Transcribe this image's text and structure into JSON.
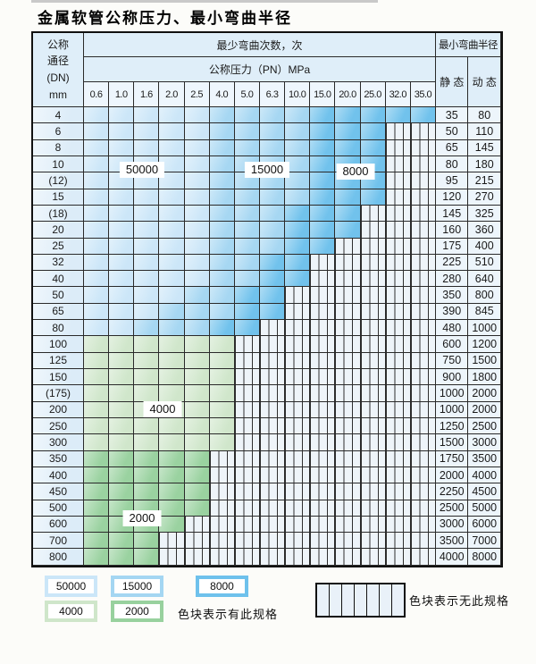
{
  "title": "金属软管公称压力、最小弯曲半径",
  "table": {
    "dn_header_lines": [
      "公称",
      "通径",
      "(DN)",
      "mm"
    ],
    "bend_cycles_header": "最少弯曲次数，次",
    "pressure_header": "公称压力（PN）MPa",
    "radius_header": "最小弯曲半径",
    "static_header": "静 态",
    "dynamic_header": "动 态",
    "pressure_columns": [
      "0.6",
      "1.0",
      "1.6",
      "2.0",
      "2.5",
      "4.0",
      "5.0",
      "6.3",
      "10.0",
      "15.0",
      "20.0",
      "25.0",
      "32.0",
      "35.0"
    ],
    "rows": [
      {
        "dn": "4",
        "bands": [
          [
            "50000",
            0,
            4
          ],
          [
            "15000",
            5,
            8
          ],
          [
            "8000",
            9,
            13
          ]
        ],
        "static": "35",
        "dynamic": "80"
      },
      {
        "dn": "6",
        "bands": [
          [
            "50000",
            0,
            4
          ],
          [
            "15000",
            5,
            8
          ],
          [
            "8000",
            9,
            11
          ]
        ],
        "static": "50",
        "dynamic": "110"
      },
      {
        "dn": "8",
        "bands": [
          [
            "50000",
            0,
            4
          ],
          [
            "15000",
            5,
            8
          ],
          [
            "8000",
            9,
            11
          ]
        ],
        "static": "65",
        "dynamic": "145"
      },
      {
        "dn": "10",
        "bands": [
          [
            "50000",
            0,
            4
          ],
          [
            "15000",
            5,
            8
          ],
          [
            "8000",
            9,
            11
          ]
        ],
        "static": "80",
        "dynamic": "180"
      },
      {
        "dn": "(12)",
        "bands": [
          [
            "50000",
            0,
            4
          ],
          [
            "15000",
            5,
            8
          ],
          [
            "8000",
            9,
            11
          ]
        ],
        "static": "95",
        "dynamic": "215"
      },
      {
        "dn": "15",
        "bands": [
          [
            "50000",
            0,
            4
          ],
          [
            "15000",
            5,
            8
          ],
          [
            "8000",
            9,
            11
          ]
        ],
        "static": "120",
        "dynamic": "270"
      },
      {
        "dn": "(18)",
        "bands": [
          [
            "50000",
            0,
            4
          ],
          [
            "15000",
            5,
            7
          ],
          [
            "8000",
            8,
            10
          ]
        ],
        "static": "145",
        "dynamic": "325"
      },
      {
        "dn": "20",
        "bands": [
          [
            "50000",
            0,
            4
          ],
          [
            "15000",
            5,
            7
          ],
          [
            "8000",
            8,
            10
          ]
        ],
        "static": "160",
        "dynamic": "360"
      },
      {
        "dn": "25",
        "bands": [
          [
            "50000",
            0,
            4
          ],
          [
            "15000",
            5,
            7
          ],
          [
            "8000",
            8,
            9
          ]
        ],
        "static": "175",
        "dynamic": "400"
      },
      {
        "dn": "32",
        "bands": [
          [
            "50000",
            0,
            4
          ],
          [
            "15000",
            5,
            6
          ],
          [
            "8000",
            7,
            8
          ]
        ],
        "static": "225",
        "dynamic": "510"
      },
      {
        "dn": "40",
        "bands": [
          [
            "50000",
            0,
            4
          ],
          [
            "15000",
            5,
            6
          ],
          [
            "8000",
            7,
            8
          ]
        ],
        "static": "280",
        "dynamic": "640"
      },
      {
        "dn": "50",
        "bands": [
          [
            "50000",
            0,
            3
          ],
          [
            "15000",
            4,
            5
          ],
          [
            "8000",
            6,
            7
          ]
        ],
        "static": "350",
        "dynamic": "800"
      },
      {
        "dn": "65",
        "bands": [
          [
            "50000",
            0,
            2
          ],
          [
            "15000",
            3,
            5
          ],
          [
            "8000",
            6,
            7
          ]
        ],
        "static": "390",
        "dynamic": "845"
      },
      {
        "dn": "80",
        "bands": [
          [
            "50000",
            0,
            1
          ],
          [
            "15000",
            2,
            4
          ],
          [
            "8000",
            5,
            6
          ]
        ],
        "static": "480",
        "dynamic": "1000"
      },
      {
        "dn": "100",
        "bands": [
          [
            "4000",
            0,
            5
          ]
        ],
        "static": "600",
        "dynamic": "1200"
      },
      {
        "dn": "125",
        "bands": [
          [
            "4000",
            0,
            5
          ]
        ],
        "static": "750",
        "dynamic": "1500"
      },
      {
        "dn": "150",
        "bands": [
          [
            "4000",
            0,
            5
          ]
        ],
        "static": "900",
        "dynamic": "1800"
      },
      {
        "dn": "(175)",
        "bands": [
          [
            "4000",
            0,
            5
          ]
        ],
        "static": "1000",
        "dynamic": "2000"
      },
      {
        "dn": "200",
        "bands": [
          [
            "4000",
            0,
            5
          ]
        ],
        "static": "1000",
        "dynamic": "2000"
      },
      {
        "dn": "250",
        "bands": [
          [
            "4000",
            0,
            5
          ]
        ],
        "static": "1250",
        "dynamic": "2500"
      },
      {
        "dn": "300",
        "bands": [
          [
            "4000",
            0,
            5
          ]
        ],
        "static": "1500",
        "dynamic": "3000"
      },
      {
        "dn": "350",
        "bands": [
          [
            "2000",
            0,
            4
          ]
        ],
        "static": "1750",
        "dynamic": "3500"
      },
      {
        "dn": "400",
        "bands": [
          [
            "2000",
            0,
            4
          ]
        ],
        "static": "2000",
        "dynamic": "4000"
      },
      {
        "dn": "450",
        "bands": [
          [
            "2000",
            0,
            4
          ]
        ],
        "static": "2250",
        "dynamic": "4500"
      },
      {
        "dn": "500",
        "bands": [
          [
            "2000",
            0,
            4
          ]
        ],
        "static": "2500",
        "dynamic": "5000"
      },
      {
        "dn": "600",
        "bands": [
          [
            "2000",
            0,
            3
          ]
        ],
        "static": "3000",
        "dynamic": "6000"
      },
      {
        "dn": "700",
        "bands": [
          [
            "2000",
            0,
            2
          ]
        ],
        "static": "3500",
        "dynamic": "7000"
      },
      {
        "dn": "800",
        "bands": [
          [
            "2000",
            0,
            2
          ]
        ],
        "static": "4000",
        "dynamic": "8000"
      }
    ],
    "overlay_labels": [
      "50000",
      "15000",
      "8000",
      "4000",
      "2000"
    ]
  },
  "colors": {
    "50000": "#cbe6f8",
    "15000": "#a4d6f2",
    "8000": "#6ec1ec",
    "4000": "#cfe6ca",
    "2000": "#98d19e",
    "no_spec_bg": "#eef4f9",
    "grid_line": "#2a2a2a",
    "header_bg": "#dfeef9"
  },
  "legend": {
    "items": [
      {
        "label": "50000"
      },
      {
        "label": "15000"
      },
      {
        "label": "8000"
      },
      {
        "label": "4000"
      },
      {
        "label": "2000"
      }
    ],
    "has_spec_text": "色块表示有此规格",
    "no_spec_text": "色块表示无此规格",
    "no_spec_cells": 7
  }
}
